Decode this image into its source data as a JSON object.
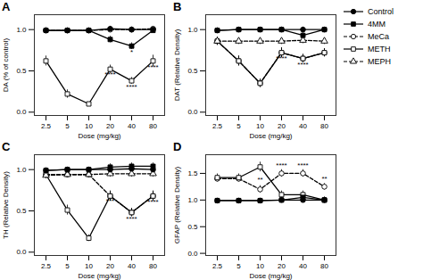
{
  "chart_data": [
    {
      "type": "line",
      "title": "A",
      "x_label": "Dose (mg/kg)",
      "y_label": "DA (% of control)",
      "categories": [
        "2.5",
        "5",
        "10",
        "20",
        "40",
        "80"
      ],
      "series": [
        {
          "name": "Control",
          "color": "black",
          "marker": "filled-circle",
          "line_style": "solid",
          "values": [
            0.99,
            0.99,
            0.99,
            1.01,
            1.0,
            1.0
          ],
          "errors": [
            0.03,
            0.02,
            0.02,
            0.03,
            0.03,
            0.02
          ]
        },
        {
          "name": "4MM",
          "color": "black",
          "marker": "filled-square",
          "line_style": "solid",
          "values": [
            0.99,
            0.99,
            0.99,
            0.88,
            0.8,
            0.99
          ],
          "errors": [
            0.03,
            0.03,
            0.03,
            0.04,
            0.04,
            0.03
          ]
        },
        {
          "name": "MeCa",
          "color": "black",
          "marker": "open-circle",
          "line_style": "dashed",
          "values": [
            0.99,
            0.99,
            0.99,
            1.0,
            1.0,
            1.01
          ],
          "errors": [
            0.03,
            0.02,
            0.02,
            0.03,
            0.03,
            0.02
          ]
        },
        {
          "name": "METH",
          "color": "black",
          "marker": "open-square",
          "line_style": "solid",
          "values": [
            0.62,
            0.22,
            0.1,
            0.52,
            0.38,
            0.62
          ],
          "errors": [
            0.06,
            0.05,
            0.02,
            0.05,
            0.04,
            0.07
          ]
        }
      ],
      "annotations": [
        {
          "x": "20",
          "y": 0.43,
          "text": "****"
        },
        {
          "x": "40",
          "y": 0.28,
          "text": "****"
        },
        {
          "x": "80",
          "y": 0.52,
          "text": "****"
        },
        {
          "x": "40",
          "y": 0.7,
          "text": "*"
        }
      ],
      "ylim": [
        -0.04,
        1.18
      ],
      "yticks": [
        0,
        0.5,
        1
      ]
    },
    {
      "type": "line",
      "title": "B",
      "x_label": "Dose (mg/kg)",
      "y_label": "DAT (Relative Density)",
      "categories": [
        "2.5",
        "5",
        "10",
        "20",
        "40",
        "80"
      ],
      "series": [
        {
          "name": "Control",
          "color": "black",
          "marker": "filled-circle",
          "line_style": "solid",
          "values": [
            0.99,
            1.0,
            1.0,
            1.0,
            1.0,
            1.0
          ],
          "errors": [
            0.03,
            0.02,
            0.02,
            0.03,
            0.03,
            0.02
          ]
        },
        {
          "name": "4MM",
          "color": "black",
          "marker": "filled-square",
          "line_style": "solid",
          "values": [
            0.99,
            1.0,
            1.0,
            1.0,
            0.93,
            1.0
          ],
          "errors": [
            0.03,
            0.03,
            0.03,
            0.03,
            0.04,
            0.03
          ]
        },
        {
          "name": "MeCa",
          "color": "black",
          "marker": "open-circle",
          "line_style": "dashed",
          "values": [
            0.86,
            0.62,
            0.35,
            0.72,
            0.65,
            0.72
          ],
          "errors": [
            0.05,
            0.06,
            0.05,
            0.06,
            0.05,
            0.05
          ]
        },
        {
          "name": "METH",
          "color": "black",
          "marker": "open-square",
          "line_style": "solid",
          "values": [
            0.86,
            0.62,
            0.35,
            0.72,
            0.65,
            0.72
          ],
          "errors": [
            0.05,
            0.06,
            0.05,
            0.06,
            0.05,
            0.05
          ]
        },
        {
          "name": "MEPH",
          "color": "black",
          "marker": "open-triangle",
          "line_style": "dashed",
          "values": [
            0.86,
            0.86,
            0.86,
            0.86,
            0.87,
            0.86
          ],
          "errors": [
            0.04,
            0.04,
            0.04,
            0.04,
            0.04,
            0.04
          ]
        }
      ],
      "annotations": [
        {
          "x": "20",
          "y": 0.62,
          "text": "****"
        },
        {
          "x": "40",
          "y": 0.55,
          "text": "****"
        }
      ],
      "ylim": [
        -0.04,
        1.18
      ],
      "yticks": [
        0,
        0.5,
        1
      ],
      "legend": "right"
    },
    {
      "type": "line",
      "title": "C",
      "x_label": "Dose (mg/kg)",
      "y_label": "TH (Relative Density)",
      "categories": [
        "2.5",
        "5",
        "10",
        "20",
        "40",
        "80"
      ],
      "series": [
        {
          "name": "Control",
          "color": "black",
          "marker": "filled-circle",
          "line_style": "solid",
          "values": [
            0.99,
            1.0,
            1.0,
            1.0,
            1.01,
            1.0
          ],
          "errors": [
            0.03,
            0.02,
            0.02,
            0.03,
            0.03,
            0.02
          ]
        },
        {
          "name": "4MM",
          "color": "black",
          "marker": "filled-square",
          "line_style": "solid",
          "values": [
            0.99,
            1.0,
            1.0,
            1.03,
            1.04,
            1.04
          ],
          "errors": [
            0.03,
            0.03,
            0.03,
            0.04,
            0.04,
            0.04
          ]
        },
        {
          "name": "MeCa",
          "color": "black",
          "marker": "open-circle",
          "line_style": "dashed",
          "values": [
            0.94,
            0.94,
            0.94,
            0.68,
            0.48,
            0.68
          ],
          "errors": [
            0.04,
            0.04,
            0.04,
            0.06,
            0.05,
            0.06
          ]
        },
        {
          "name": "METH",
          "color": "black",
          "marker": "open-square",
          "line_style": "solid",
          "values": [
            0.94,
            0.51,
            0.17,
            0.68,
            0.48,
            0.68
          ],
          "errors": [
            0.05,
            0.06,
            0.04,
            0.06,
            0.05,
            0.06
          ]
        },
        {
          "name": "MEPH",
          "color": "black",
          "marker": "open-triangle",
          "line_style": "dashed",
          "values": [
            0.93,
            0.94,
            0.94,
            0.95,
            0.95,
            0.95
          ],
          "errors": [
            0.04,
            0.04,
            0.04,
            0.04,
            0.04,
            0.04
          ]
        }
      ],
      "annotations": [
        {
          "x": "20",
          "y": 0.59,
          "text": "***"
        },
        {
          "x": "40",
          "y": 0.38,
          "text": "****"
        },
        {
          "x": "80",
          "y": 0.58,
          "text": "****"
        }
      ],
      "ylim": [
        -0.04,
        1.18
      ],
      "yticks": [
        0,
        0.5,
        1
      ]
    },
    {
      "type": "line",
      "title": "D",
      "x_label": "Dose (mg/kg)",
      "y_label": "GFAP (Relative Density)",
      "categories": [
        "2.5",
        "5",
        "10",
        "20",
        "40",
        "80"
      ],
      "series": [
        {
          "name": "Control",
          "color": "black",
          "marker": "filled-circle",
          "line_style": "solid",
          "values": [
            0.99,
            0.99,
            0.99,
            1.0,
            1.0,
            1.0
          ],
          "errors": [
            0.04,
            0.03,
            0.03,
            0.03,
            0.03,
            0.03
          ]
        },
        {
          "name": "4MM",
          "color": "black",
          "marker": "filled-square",
          "line_style": "solid",
          "values": [
            0.99,
            0.99,
            0.99,
            1.0,
            1.05,
            1.0
          ],
          "errors": [
            0.04,
            0.04,
            0.04,
            0.04,
            0.04,
            0.04
          ]
        },
        {
          "name": "MeCa",
          "color": "black",
          "marker": "open-circle",
          "line_style": "dashed",
          "values": [
            1.4,
            1.4,
            1.2,
            1.5,
            1.5,
            1.25
          ],
          "errors": [
            0.06,
            0.06,
            0.07,
            0.07,
            0.07,
            0.06
          ]
        },
        {
          "name": "METH",
          "color": "black",
          "marker": "open-square",
          "line_style": "solid",
          "values": [
            1.42,
            1.42,
            1.62,
            1.1,
            1.1,
            1.0
          ],
          "errors": [
            0.07,
            0.07,
            0.09,
            0.07,
            0.07,
            0.06
          ]
        }
      ],
      "annotations": [
        {
          "x": "10",
          "y": 1.34,
          "text": "**"
        },
        {
          "x": "20",
          "y": 1.6,
          "text": "****"
        },
        {
          "x": "40",
          "y": 1.6,
          "text": "****"
        },
        {
          "x": "80",
          "y": 1.35,
          "text": "**"
        }
      ],
      "ylim": [
        -0.04,
        1.85
      ],
      "yticks": [
        0,
        0.5,
        1,
        1.5
      ]
    }
  ]
}
